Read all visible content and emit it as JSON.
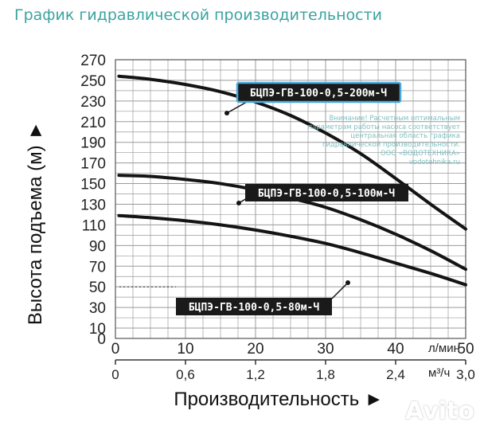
{
  "page": {
    "title": "График гидравлической производительности",
    "watermark": "Avito"
  },
  "note_lines": [
    "Внимание! Расчетным оптимальным",
    "параметрам работы насоса соответствует",
    "центральная область графика",
    "гидравлической производительности.",
    "ООО «ВОДОТЕХНИКА»",
    "vodotehnika.ru"
  ],
  "chart_data": {
    "type": "line",
    "ylabel": "Высота подъема (м) ►",
    "xlabel": "Производительность ►",
    "ylim": [
      0,
      270
    ],
    "yticks": [
      0,
      10,
      30,
      50,
      70,
      90,
      110,
      130,
      150,
      170,
      190,
      210,
      230,
      250,
      270
    ],
    "x_lmin": {
      "unit": "л/мин",
      "range": [
        0,
        50
      ],
      "ticks": [
        "0",
        "10",
        "20",
        "30",
        "40",
        "50"
      ],
      "values": [
        0,
        10,
        20,
        30,
        40,
        50
      ]
    },
    "x_m3h": {
      "unit": "м³/ч",
      "range": [
        0,
        3.0
      ],
      "ticks": [
        "0",
        "0,6",
        "1,2",
        "1,8",
        "2,4",
        "3,0"
      ],
      "values": [
        0,
        0.6,
        1.2,
        1.8,
        2.4,
        3.0
      ]
    },
    "grid": true,
    "series": [
      {
        "name": "БЦПЭ-ГВ-100-0,5-200м-Ч",
        "x": [
          0.5,
          5,
          10,
          15,
          20,
          25,
          30,
          35,
          40,
          45,
          50
        ],
        "y": [
          254,
          251,
          246,
          239,
          229,
          216,
          199,
          179,
          155,
          130,
          106
        ]
      },
      {
        "name": "БЦПЭ-ГВ-100-0,5-100м-Ч",
        "x": [
          0.5,
          5,
          10,
          15,
          20,
          25,
          30,
          35,
          40,
          45,
          50
        ],
        "y": [
          158,
          157,
          154,
          150,
          144,
          136,
          127,
          115,
          101,
          85,
          67
        ]
      },
      {
        "name": "БЦПЭ-ГВ-100-0,5-80м-Ч",
        "x": [
          0.5,
          5,
          10,
          15,
          20,
          25,
          30,
          35,
          40,
          45,
          50
        ],
        "y": [
          119,
          117,
          114,
          110,
          105,
          99,
          92,
          83,
          73,
          63,
          52
        ]
      }
    ]
  }
}
